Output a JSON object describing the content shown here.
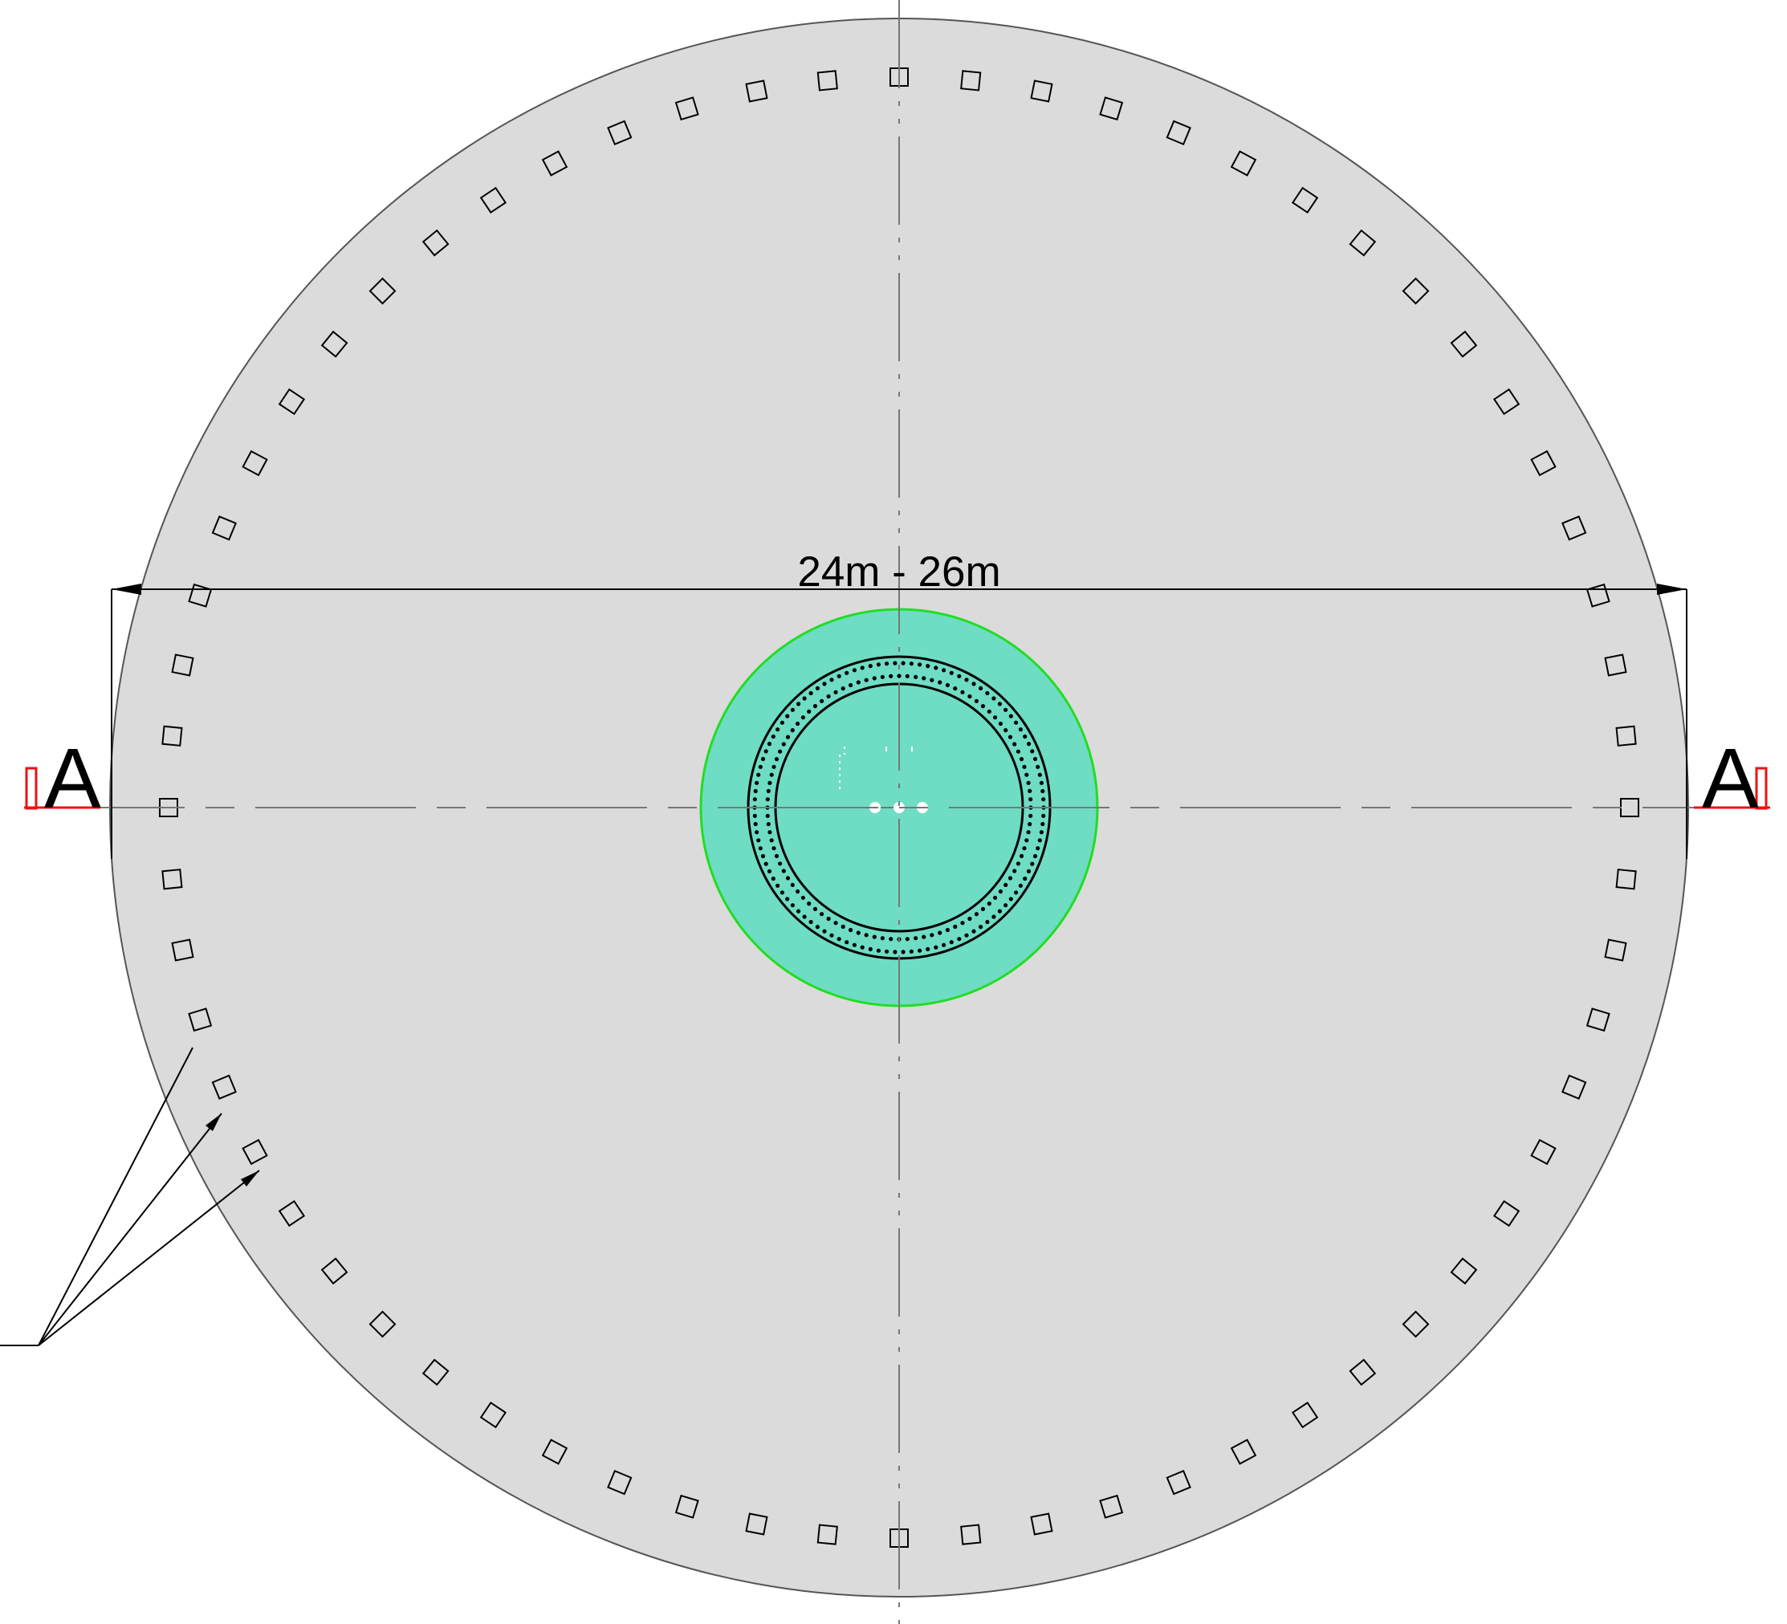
{
  "drawing": {
    "dimension_label": "24m - 26m",
    "section_marker_left": "A",
    "section_marker_right": "A",
    "anchor_count": 64,
    "inner_bolt_rows": 2,
    "colors": {
      "foundation_fill": "#dbdbdb",
      "foundation_stroke": "#555555",
      "pedestal_fill": "#6fdcc4",
      "pedestal_stroke": "#22dd22",
      "section_marker": "#ee1111",
      "line": "#000000",
      "centerline": "#777777"
    }
  }
}
